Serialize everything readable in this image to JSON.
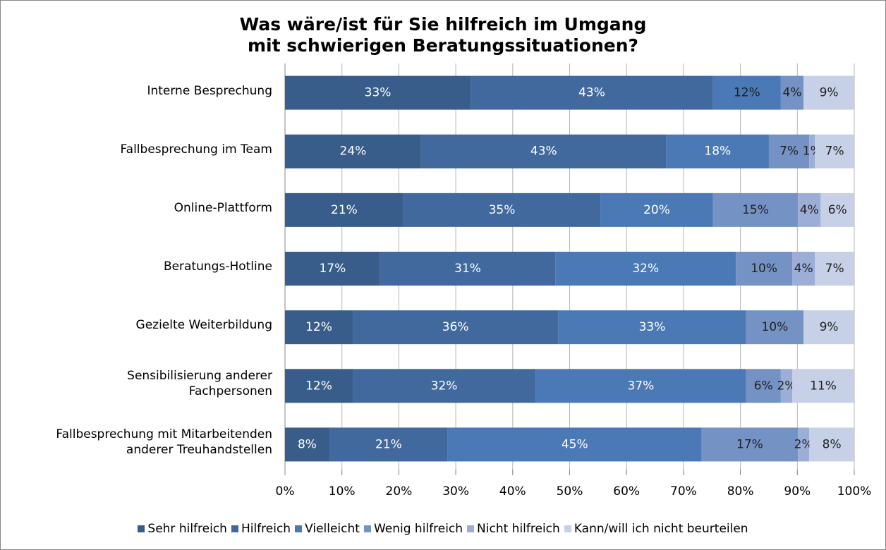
{
  "chart_data": {
    "type": "stacked-barh",
    "title": "Was wäre/ist für Sie hilfreich im Umgang\nmit schwierigen Beratungssituationen?",
    "categories": [
      "Interne Besprechung",
      "Fallbesprechung im Team",
      "Online-Plattform",
      "Beratungs-Hotline",
      "Gezielte Weiterbildung",
      "Sensibilisierung anderer\nFachpersonen",
      "Fallbesprechung mit Mitarbeitenden\nanderer Treuhandstellen"
    ],
    "series": [
      {
        "name": "Sehr hilfreich",
        "color": "#385d8b",
        "values": [
          32.6,
          23.9,
          20.8,
          16.7,
          11.9,
          11.9,
          7.8
        ],
        "value_labels": [
          "33%",
          "24%",
          "21%",
          "17%",
          "12%",
          "12%",
          "8%"
        ]
      },
      {
        "name": "Hilfreich",
        "color": "#42699d",
        "values": [
          42.6,
          43.1,
          34.6,
          30.8,
          36.1,
          32.1,
          20.8
        ],
        "value_labels": [
          "43%",
          "43%",
          "35%",
          "31%",
          "36%",
          "32%",
          "21%"
        ]
      },
      {
        "name": "Vielleicht",
        "color": "#4a79b6",
        "values": [
          11.9,
          18.0,
          19.8,
          31.7,
          33.0,
          37.0,
          44.6
        ],
        "value_labels": [
          "12%",
          "18%",
          "20%",
          "32%",
          "33%",
          "37%",
          "45%"
        ]
      },
      {
        "name": "Wenig hilfreich",
        "color": "#7592c4",
        "values": [
          4.0,
          7.1,
          14.9,
          9.9,
          10.1,
          6.1,
          16.9
        ],
        "value_labels": [
          "4%",
          "7%",
          "15%",
          "10%",
          "10%",
          "6%",
          "17%"
        ]
      },
      {
        "name": "Nicht hilfreich",
        "color": "#9caed6",
        "values": [
          0,
          1.0,
          4.0,
          4.0,
          0,
          2.0,
          2.0
        ],
        "value_labels": [
          null,
          "1%",
          "4%",
          "4%",
          null,
          "2%",
          "2%"
        ]
      },
      {
        "name": "Kann/will ich nicht beurteilen",
        "color": "#c6d0e6",
        "values": [
          8.9,
          6.9,
          5.9,
          6.9,
          8.9,
          10.9,
          7.9
        ],
        "value_labels": [
          "9%",
          "7%",
          "6%",
          "7%",
          "9%",
          "11%",
          "8%"
        ]
      }
    ],
    "xlim": [
      0,
      100
    ],
    "xticks": [
      {
        "value": 0,
        "label": "0%"
      },
      {
        "value": 10,
        "label": "10%"
      },
      {
        "value": 20,
        "label": "20%"
      },
      {
        "value": 30,
        "label": "30%"
      },
      {
        "value": 40,
        "label": "40%"
      },
      {
        "value": 50,
        "label": "50%"
      },
      {
        "value": 60,
        "label": "60%"
      },
      {
        "value": 70,
        "label": "70%"
      },
      {
        "value": 80,
        "label": "80%"
      },
      {
        "value": 90,
        "label": "90%"
      },
      {
        "value": 100,
        "label": "100%"
      }
    ],
    "grid": true,
    "legend": "bottom"
  }
}
